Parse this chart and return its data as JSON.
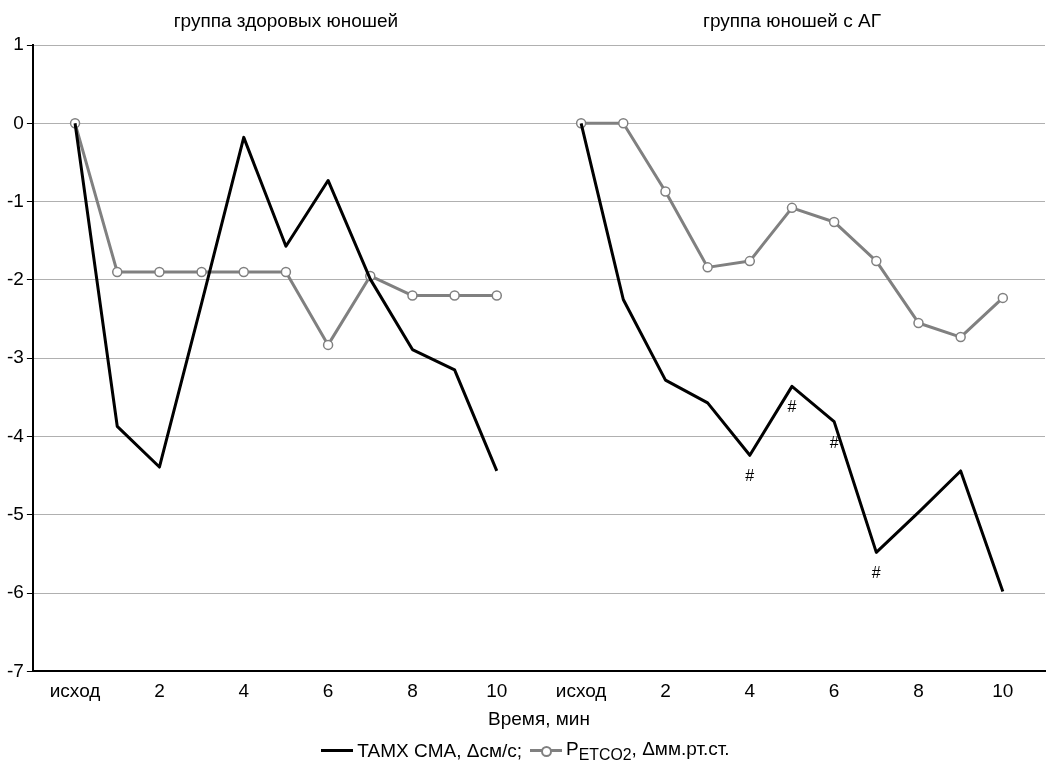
{
  "chart_data": {
    "type": "line",
    "annotations": [
      "группа здоровых юношей",
      "группа юношей с АГ"
    ],
    "xlabel": "Время, мин",
    "categories": [
      null,
      "исход",
      null,
      "2",
      null,
      "4",
      null,
      "6",
      null,
      "8",
      null,
      "10",
      null,
      "исход",
      null,
      "2",
      null,
      "4",
      null,
      "6",
      null,
      "8",
      null,
      "10",
      null
    ],
    "series": [
      {
        "name": "TAMX CMA, Δсм/с;",
        "color": "#000000",
        "marker": "none",
        "values": [
          null,
          0,
          -3.87,
          -4.39,
          -2.3,
          -0.18,
          -1.57,
          -0.73,
          -1.99,
          -2.89,
          -3.15,
          -4.44,
          null,
          0,
          -2.25,
          -3.28,
          -3.57,
          -4.24,
          -3.36,
          -3.81,
          -5.48,
          -4.97,
          -4.44,
          -5.98,
          null
        ],
        "value_labels": [
          null,
          null,
          null,
          null,
          null,
          null,
          null,
          null,
          null,
          null,
          null,
          null,
          null,
          null,
          null,
          null,
          null,
          "#",
          "#",
          "#",
          "#",
          null,
          null,
          null,
          null
        ]
      },
      {
        "name": "P$_{ETCO2}$, Δмм.рт.ст.",
        "color": "#808080",
        "marker": "circle",
        "values": [
          null,
          0,
          -1.9,
          -1.9,
          -1.9,
          -1.9,
          -1.9,
          -2.83,
          -1.95,
          -2.2,
          -2.2,
          -2.2,
          null,
          0,
          0,
          -0.87,
          -1.84,
          -1.76,
          -1.08,
          -1.26,
          -1.76,
          -2.55,
          -2.73,
          -2.23,
          null
        ]
      }
    ],
    "ylim": [
      -7,
      1
    ],
    "yticks": [
      -7,
      -6,
      -5,
      -4,
      -3,
      -2,
      -1,
      0,
      1
    ],
    "grid": "y",
    "legend": "bottom",
    "line_style": "solid"
  }
}
